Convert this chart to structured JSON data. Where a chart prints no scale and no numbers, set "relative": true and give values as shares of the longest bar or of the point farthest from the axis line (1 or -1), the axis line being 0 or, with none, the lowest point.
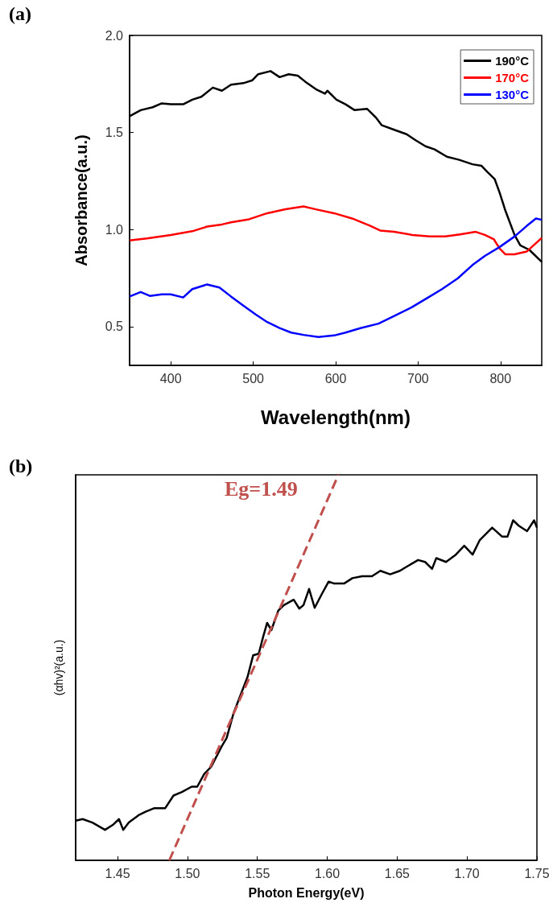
{
  "chart_data": [
    {
      "type": "line",
      "title": "(a)",
      "xlabel": "Wavelength(nm)",
      "ylabel": "Absorbance(a.u.)",
      "xlim": [
        350,
        850
      ],
      "xticks": [
        400,
        500,
        600,
        700,
        800
      ],
      "ylim": [
        0.3,
        2.0
      ],
      "yticks": [
        {
          "value": 0.5,
          "label": "0.5"
        },
        {
          "value": 1.0,
          "label": "1.0"
        },
        {
          "value": 1.5,
          "label": "1.5"
        },
        {
          "value": 2.0,
          "label": "2.0"
        }
      ],
      "legend": "top right",
      "grid": false,
      "series": [
        {
          "name": "190°C",
          "color": "#000000",
          "x": [
            350,
            363.5,
            378,
            389,
            400,
            415,
            426,
            437,
            451,
            462,
            473,
            488,
            499,
            506,
            521,
            532,
            543,
            554,
            563,
            576,
            587,
            590,
            601,
            612,
            623,
            638,
            649,
            656,
            671,
            686,
            697,
            709,
            720,
            735,
            750,
            766,
            777,
            784,
            793,
            799,
            806,
            817,
            824,
            835,
            850
          ],
          "values": [
            1.584,
            1.615,
            1.63,
            1.65,
            1.645,
            1.645,
            1.669,
            1.684,
            1.731,
            1.715,
            1.746,
            1.754,
            1.769,
            1.8,
            1.816,
            1.785,
            1.8,
            1.793,
            1.762,
            1.723,
            1.7,
            1.715,
            1.669,
            1.645,
            1.615,
            1.622,
            1.576,
            1.537,
            1.514,
            1.491,
            1.46,
            1.429,
            1.413,
            1.375,
            1.359,
            1.336,
            1.328,
            1.297,
            1.259,
            1.189,
            1.096,
            0.972,
            0.918,
            0.895,
            0.833
          ]
        },
        {
          "name": "170°C",
          "color": "#ff0000",
          "x": [
            350,
            371,
            400,
            426,
            444,
            462,
            473,
            495,
            517,
            539,
            561,
            576,
            598,
            620,
            642,
            654,
            671,
            693,
            714,
            733,
            751,
            770,
            781,
            792,
            799,
            806,
            817,
            832,
            850
          ],
          "values": [
            0.944,
            0.954,
            0.972,
            0.991,
            1.015,
            1.026,
            1.037,
            1.053,
            1.084,
            1.104,
            1.119,
            1.104,
            1.084,
            1.057,
            1.019,
            0.995,
            0.988,
            0.972,
            0.964,
            0.964,
            0.975,
            0.988,
            0.972,
            0.949,
            0.902,
            0.872,
            0.872,
            0.887,
            0.957
          ]
        },
        {
          "name": "130°C",
          "color": "#0000ff",
          "x": [
            350,
            363.5,
            374.5,
            389,
            400,
            415,
            426,
            444,
            459,
            473,
            488,
            503,
            517,
            532,
            546,
            561,
            579,
            598,
            612,
            630,
            652,
            671,
            693,
            711,
            729,
            748,
            766,
            781,
            799,
            817,
            832,
            843,
            850
          ],
          "values": [
            0.655,
            0.678,
            0.658,
            0.666,
            0.666,
            0.65,
            0.693,
            0.717,
            0.701,
            0.655,
            0.608,
            0.562,
            0.523,
            0.492,
            0.469,
            0.457,
            0.446,
            0.454,
            0.469,
            0.492,
            0.515,
            0.554,
            0.601,
            0.647,
            0.693,
            0.748,
            0.817,
            0.864,
            0.91,
            0.964,
            1.019,
            1.057,
            1.05
          ]
        }
      ]
    },
    {
      "type": "line",
      "title": "(b)",
      "xlabel": "Photon Energy(eV)",
      "ylabel": "(αhv)²(a.u.)",
      "relative": true,
      "xlim": [
        1.42,
        1.75
      ],
      "xticks": [
        1.45,
        {
          "value": 1.5,
          "label": "1.50"
        },
        1.55,
        {
          "value": 1.6,
          "label": "1.60"
        },
        1.65,
        {
          "value": 1.7,
          "label": "1.70"
        },
        1.75
      ],
      "annotations": [
        "Eg=1.49"
      ],
      "grid": false,
      "series": [
        {
          "color": "#000000",
          "x": [
            1.42,
            1.425,
            1.432,
            1.441,
            1.447,
            1.451,
            1.454,
            1.458,
            1.465,
            1.47,
            1.476,
            1.484,
            1.49,
            1.496,
            1.503,
            1.507,
            1.512,
            1.517,
            1.521,
            1.525,
            1.528,
            1.533,
            1.538,
            1.543,
            1.547,
            1.551,
            1.554,
            1.557,
            1.56,
            1.565,
            1.569,
            1.576,
            1.58,
            1.583,
            1.587,
            1.591,
            1.596,
            1.601,
            1.605,
            1.612,
            1.618,
            1.625,
            1.632,
            1.638,
            1.645,
            1.652,
            1.656,
            1.665,
            1.67,
            1.675,
            1.678,
            1.685,
            1.692,
            1.698,
            1.704,
            1.709,
            1.718,
            1.725,
            1.729,
            1.733,
            1.737,
            1.743,
            1.748,
            1.75
          ],
          "values": [
            0.103,
            0.107,
            0.098,
            0.079,
            0.093,
            0.107,
            0.079,
            0.098,
            0.117,
            0.126,
            0.135,
            0.135,
            0.168,
            0.177,
            0.191,
            0.191,
            0.224,
            0.243,
            0.271,
            0.299,
            0.317,
            0.382,
            0.429,
            0.476,
            0.532,
            0.536,
            0.578,
            0.616,
            0.597,
            0.648,
            0.662,
            0.676,
            0.653,
            0.662,
            0.704,
            0.655,
            0.69,
            0.723,
            0.718,
            0.718,
            0.732,
            0.737,
            0.737,
            0.751,
            0.742,
            0.751,
            0.76,
            0.779,
            0.774,
            0.756,
            0.784,
            0.774,
            0.793,
            0.816,
            0.793,
            0.83,
            0.863,
            0.84,
            0.84,
            0.882,
            0.868,
            0.854,
            0.882,
            0.863
          ]
        },
        {
          "color": "#c0504d",
          "line_style": "dashed",
          "x": [
            1.487,
            1.608
          ],
          "values": [
            0,
            1
          ]
        }
      ]
    }
  ]
}
